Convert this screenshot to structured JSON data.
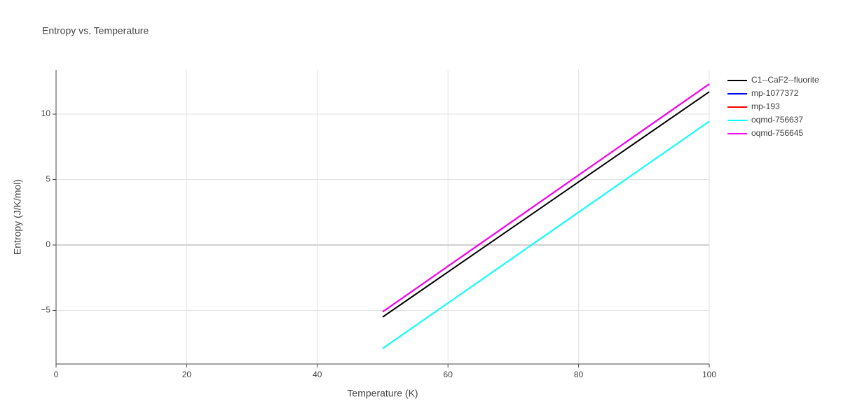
{
  "chart_data": {
    "type": "line",
    "title": "Entropy vs. Temperature",
    "x_label": "Temperature (K)",
    "y_label": "Entropy (J/K/mol)",
    "x": [
      50,
      100
    ],
    "series": [
      {
        "name": "C1--CaF2--fluorite",
        "color": "#000000",
        "values": [
          -5.5,
          11.7
        ]
      },
      {
        "name": "mp-1077372",
        "color": "#0000ff",
        "values": [
          -5.1,
          12.3
        ]
      },
      {
        "name": "mp-193",
        "color": "#ff0000",
        "values": [
          -5.1,
          12.3
        ]
      },
      {
        "name": "oqmd-756637",
        "color": "#00ffff",
        "values": [
          -7.9,
          9.45
        ]
      },
      {
        "name": "oqmd-756645",
        "color": "#ff00ff",
        "values": [
          -5.1,
          12.3
        ]
      }
    ],
    "xlim": [
      0,
      100
    ],
    "xticks": [
      0,
      20,
      40,
      60,
      80,
      100
    ],
    "ylim": [
      -9.09,
      13.37
    ],
    "yticks": [
      {
        "value": -5,
        "label": "−5"
      },
      0,
      5,
      10
    ],
    "grid": true,
    "legend": "right"
  }
}
